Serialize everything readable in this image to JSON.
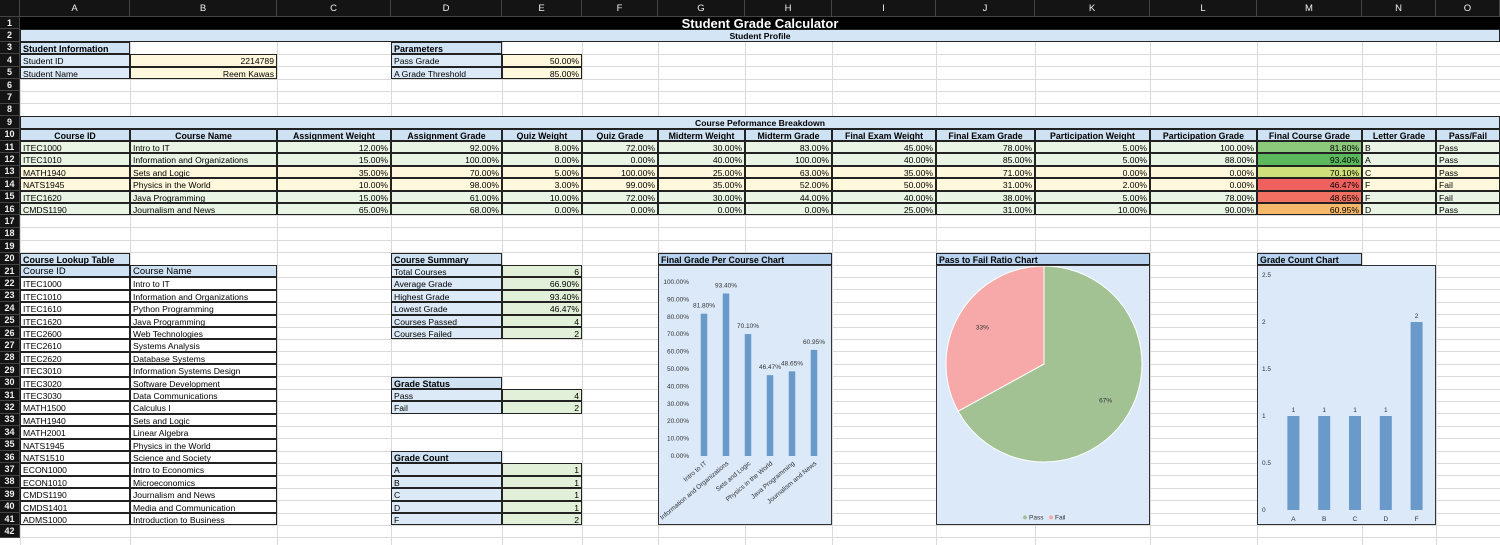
{
  "columns": [
    "A",
    "B",
    "C",
    "D",
    "E",
    "F",
    "G",
    "H",
    "I",
    "J",
    "K",
    "L",
    "M",
    "N",
    "O"
  ],
  "title": "Student Grade Calculator",
  "profile_band": "Student Profile",
  "student_info": {
    "header": "Student Information",
    "id_label": "Student ID",
    "id_value": "2214789",
    "name_label": "Student Name",
    "name_value": "Reem Kawas"
  },
  "parameters": {
    "header": "Parameters",
    "pass_label": "Pass Grade",
    "pass_value": "50.00%",
    "agrade_label": "A Grade Threshold",
    "agrade_value": "85.00%"
  },
  "perf_band": "Course Peformance Breakdown",
  "perf_headers": [
    "Course ID",
    "Course Name",
    "Assignment Weight",
    "Assignment Grade",
    "Quiz Weight",
    "Quiz Grade",
    "Midterm Weight",
    "Midterm Grade",
    "Final Exam Weight",
    "Final Exam Grade",
    "Participation Weight",
    "Participation Grade",
    "Final Course Grade",
    "Letter Grade",
    "Pass/Fail"
  ],
  "perf_rows": [
    [
      "ITEC1000",
      "Intro to IT",
      "12.00%",
      "92.00%",
      "8.00%",
      "72.00%",
      "30.00%",
      "83.00%",
      "45.00%",
      "78.00%",
      "5.00%",
      "100.00%",
      "81.80%",
      "B",
      "Pass"
    ],
    [
      "ITEC1010",
      "Information and Organizations",
      "15.00%",
      "100.00%",
      "0.00%",
      "0.00%",
      "40.00%",
      "100.00%",
      "40.00%",
      "85.00%",
      "5.00%",
      "88.00%",
      "93.40%",
      "A",
      "Pass"
    ],
    [
      "MATH1940",
      "Sets and Logic",
      "35.00%",
      "70.00%",
      "5.00%",
      "100.00%",
      "25.00%",
      "63.00%",
      "35.00%",
      "71.00%",
      "0.00%",
      "0.00%",
      "70.10%",
      "C",
      "Pass"
    ],
    [
      "NATS1945",
      "Physics in the World",
      "10.00%",
      "98.00%",
      "3.00%",
      "99.00%",
      "35.00%",
      "52.00%",
      "50.00%",
      "31.00%",
      "2.00%",
      "0.00%",
      "46.47%",
      "F",
      "Fail"
    ],
    [
      "ITEC1620",
      "Java Programming",
      "15.00%",
      "61.00%",
      "10.00%",
      "72.00%",
      "30.00%",
      "44.00%",
      "40.00%",
      "38.00%",
      "5.00%",
      "78.00%",
      "48.65%",
      "F",
      "Fail"
    ],
    [
      "CMDS1190",
      "Journalism and News",
      "65.00%",
      "68.00%",
      "0.00%",
      "0.00%",
      "0.00%",
      "0.00%",
      "25.00%",
      "31.00%",
      "10.00%",
      "90.00%",
      "60.95%",
      "D",
      "Pass"
    ]
  ],
  "final_grade_colors": [
    "#8cc97a",
    "#5cb85c",
    "#cfe07a",
    "#f0605f",
    "#f27062",
    "#f6b96b"
  ],
  "lookup": {
    "header": "Course Lookup Table",
    "col_id": "Course ID",
    "col_name": "Course Name",
    "rows": [
      [
        "ITEC1000",
        "Intro to IT"
      ],
      [
        "ITEC1010",
        "Information and Organizations"
      ],
      [
        "ITEC1610",
        "Python Programming"
      ],
      [
        "ITEC1620",
        "Java Programming"
      ],
      [
        "ITEC2600",
        "Web Technologies"
      ],
      [
        "ITEC2610",
        "Systems Analysis"
      ],
      [
        "ITEC2620",
        "Database Systems"
      ],
      [
        "ITEC3010",
        "Information Systems Design"
      ],
      [
        "ITEC3020",
        "Software Development"
      ],
      [
        "ITEC3030",
        "Data Communications"
      ],
      [
        "MATH1500",
        "Calculus I"
      ],
      [
        "MATH1940",
        "Sets and Logic"
      ],
      [
        "MATH2001",
        "Linear Algebra"
      ],
      [
        "NATS1945",
        "Physics in the World"
      ],
      [
        "NATS1510",
        "Science and Society"
      ],
      [
        "ECON1000",
        "Intro to Economics"
      ],
      [
        "ECON1010",
        "Microeconomics"
      ],
      [
        "CMDS1190",
        "Journalism and News"
      ],
      [
        "CMDS1401",
        "Media and Communication"
      ],
      [
        "ADMS1000",
        "Introduction to Business"
      ]
    ]
  },
  "course_summary": {
    "header": "Course Summary",
    "rows": [
      [
        "Total Courses",
        "6"
      ],
      [
        "Average Grade",
        "66.90%"
      ],
      [
        "Highest Grade",
        "93.40%"
      ],
      [
        "Lowest Grade",
        "46.47%"
      ],
      [
        "Courses Passed",
        "4"
      ],
      [
        "Courses Failed",
        "2"
      ]
    ]
  },
  "grade_status": {
    "header": "Grade Status",
    "rows": [
      [
        "Pass",
        "4"
      ],
      [
        "Fail",
        "2"
      ]
    ]
  },
  "grade_count": {
    "header": "Grade Count",
    "rows": [
      [
        "A",
        "1"
      ],
      [
        "B",
        "1"
      ],
      [
        "C",
        "1"
      ],
      [
        "D",
        "1"
      ],
      [
        "F",
        "2"
      ]
    ]
  },
  "chart_data": [
    {
      "type": "bar",
      "title": "Final Grade Per Course Chart",
      "categories": [
        "Intro to IT",
        "Information and Organizations",
        "Sets and Logic",
        "Physics in the World",
        "Java Programming",
        "Journalism and News"
      ],
      "values": [
        81.8,
        93.4,
        70.1,
        46.47,
        48.65,
        60.95
      ],
      "data_labels": [
        "81.80%",
        "93.40%",
        "70.10%",
        "46.47%",
        "48.65%",
        "60.95%"
      ],
      "ylim": [
        0,
        100
      ],
      "y_ticks": [
        "0.00%",
        "10.00%",
        "20.00%",
        "30.00%",
        "40.00%",
        "50.00%",
        "60.00%",
        "70.00%",
        "80.00%",
        "90.00%",
        "100.00%"
      ],
      "color": "#6a9ac9"
    },
    {
      "type": "pie",
      "title": "Pass to Fail Ratio Chart",
      "labels": [
        "Pass",
        "Fail"
      ],
      "values": [
        67,
        33
      ],
      "data_labels": [
        "67%",
        "33%"
      ],
      "colors": [
        "#a3c293",
        "#f6a9a8"
      ],
      "legend": "bottom"
    },
    {
      "type": "bar",
      "title": "Grade Count Chart",
      "categories": [
        "A",
        "B",
        "C",
        "D",
        "F"
      ],
      "values": [
        1,
        1,
        1,
        1,
        2
      ],
      "data_labels": [
        "1",
        "1",
        "1",
        "1",
        "2"
      ],
      "ylim": [
        0,
        2.5
      ],
      "y_ticks": [
        "0",
        "0.5",
        "1",
        "1.5",
        "2",
        "2.5"
      ],
      "color": "#6a9ac9"
    }
  ]
}
